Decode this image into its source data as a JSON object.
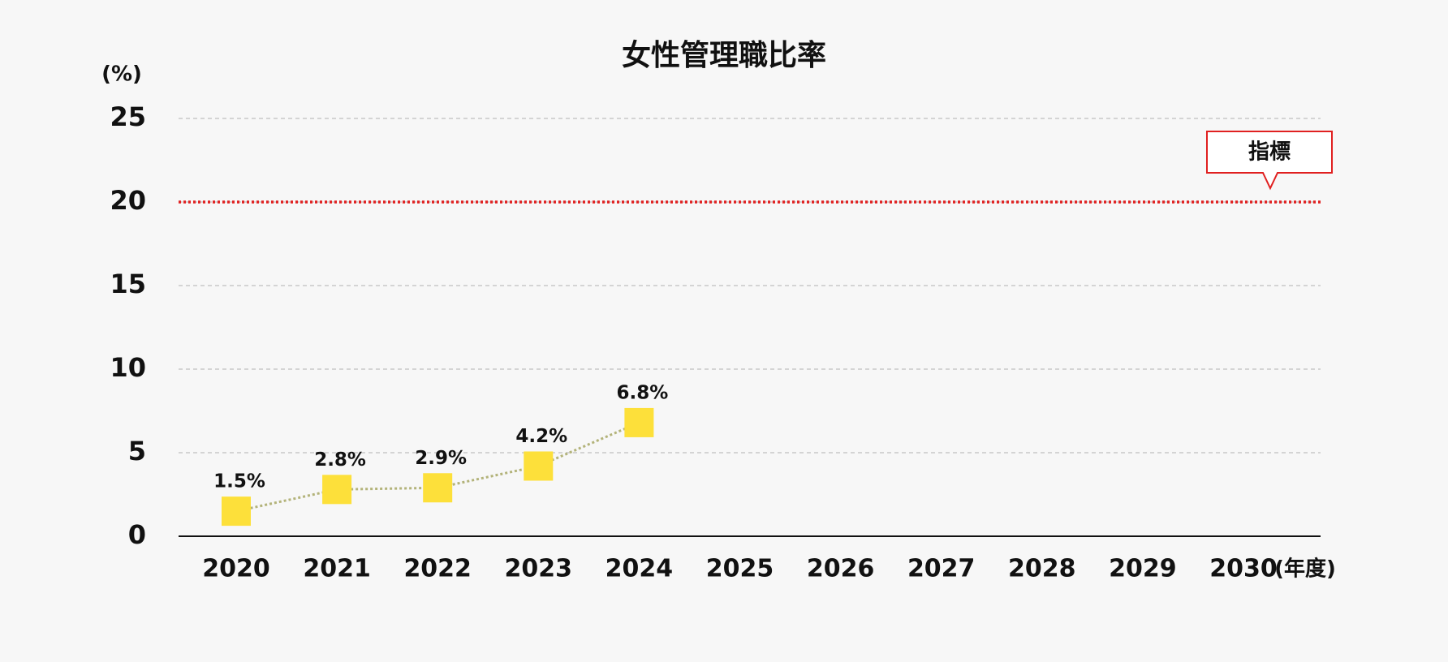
{
  "chart_data": {
    "type": "line",
    "title": "女性管理職比率",
    "y_unit": "(%)",
    "x_unit": "(年度)",
    "categories": [
      "2020",
      "2021",
      "2022",
      "2023",
      "2024",
      "2025",
      "2026",
      "2027",
      "2028",
      "2029",
      "2030"
    ],
    "values": [
      1.5,
      2.8,
      2.9,
      4.2,
      6.8,
      null,
      null,
      null,
      null,
      null,
      null
    ],
    "value_labels": [
      "1.5%",
      "2.8%",
      "2.9%",
      "4.2%",
      "6.8%",
      null,
      null,
      null,
      null,
      null,
      null
    ],
    "color": "#b3b37a",
    "marker_color": "#fde03a",
    "ylim": [
      0,
      25
    ],
    "yticks": [
      0,
      5,
      10,
      15,
      20,
      25
    ],
    "grid": true,
    "target": {
      "value": 20,
      "label": "指標",
      "color": "#e02020"
    }
  }
}
